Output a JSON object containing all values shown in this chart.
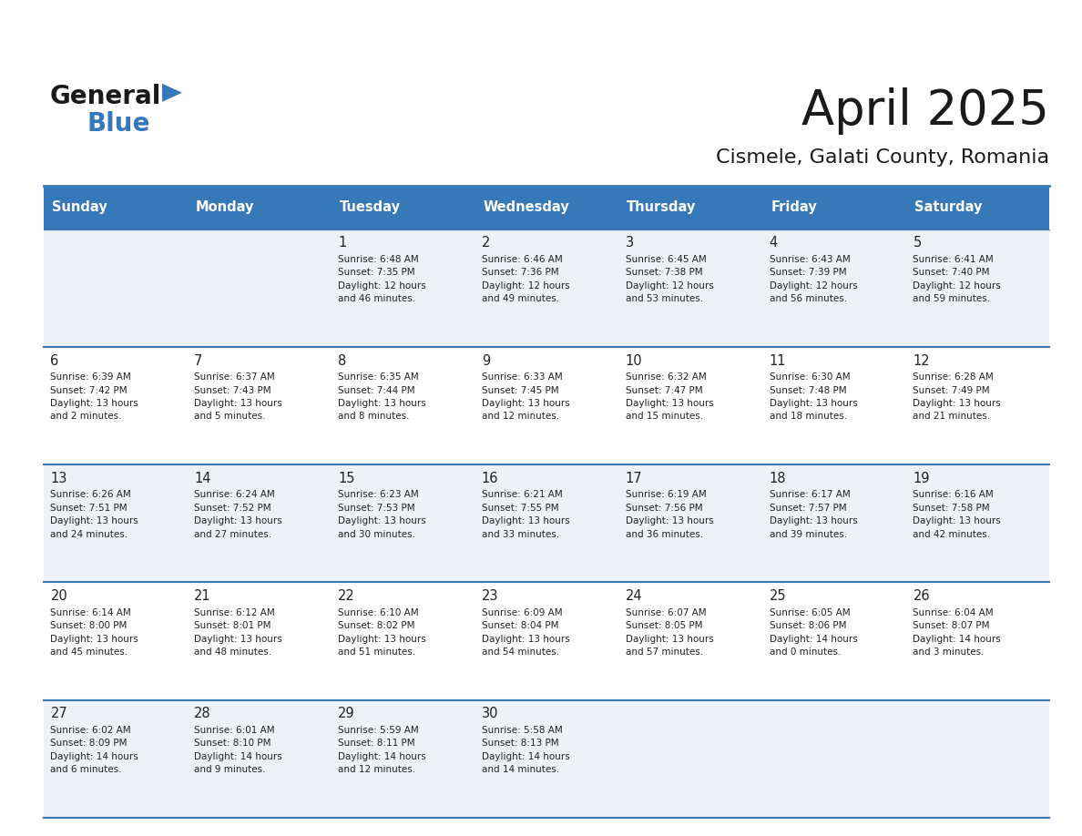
{
  "title": "April 2025",
  "subtitle": "Cismele, Galati County, Romania",
  "header_bg": "#3778b8",
  "header_text_color": "#ffffff",
  "days_of_week": [
    "Sunday",
    "Monday",
    "Tuesday",
    "Wednesday",
    "Thursday",
    "Friday",
    "Saturday"
  ],
  "row_bg_light": "#eef1f5",
  "row_bg_white": "#ffffff",
  "cell_border_color": "#3778b8",
  "day_number_color": "#222222",
  "info_text_color": "#222222",
  "title_color": "#1a1a1a",
  "subtitle_color": "#1a1a1a",
  "logo_text_color_general": "#1a1a1a",
  "logo_text_color_blue": "#3778b8",
  "logo_triangle_color": "#3778b8",
  "calendar_data": [
    [
      {
        "day": "",
        "info": ""
      },
      {
        "day": "",
        "info": ""
      },
      {
        "day": "1",
        "info": "Sunrise: 6:48 AM\nSunset: 7:35 PM\nDaylight: 12 hours\nand 46 minutes."
      },
      {
        "day": "2",
        "info": "Sunrise: 6:46 AM\nSunset: 7:36 PM\nDaylight: 12 hours\nand 49 minutes."
      },
      {
        "day": "3",
        "info": "Sunrise: 6:45 AM\nSunset: 7:38 PM\nDaylight: 12 hours\nand 53 minutes."
      },
      {
        "day": "4",
        "info": "Sunrise: 6:43 AM\nSunset: 7:39 PM\nDaylight: 12 hours\nand 56 minutes."
      },
      {
        "day": "5",
        "info": "Sunrise: 6:41 AM\nSunset: 7:40 PM\nDaylight: 12 hours\nand 59 minutes."
      }
    ],
    [
      {
        "day": "6",
        "info": "Sunrise: 6:39 AM\nSunset: 7:42 PM\nDaylight: 13 hours\nand 2 minutes."
      },
      {
        "day": "7",
        "info": "Sunrise: 6:37 AM\nSunset: 7:43 PM\nDaylight: 13 hours\nand 5 minutes."
      },
      {
        "day": "8",
        "info": "Sunrise: 6:35 AM\nSunset: 7:44 PM\nDaylight: 13 hours\nand 8 minutes."
      },
      {
        "day": "9",
        "info": "Sunrise: 6:33 AM\nSunset: 7:45 PM\nDaylight: 13 hours\nand 12 minutes."
      },
      {
        "day": "10",
        "info": "Sunrise: 6:32 AM\nSunset: 7:47 PM\nDaylight: 13 hours\nand 15 minutes."
      },
      {
        "day": "11",
        "info": "Sunrise: 6:30 AM\nSunset: 7:48 PM\nDaylight: 13 hours\nand 18 minutes."
      },
      {
        "day": "12",
        "info": "Sunrise: 6:28 AM\nSunset: 7:49 PM\nDaylight: 13 hours\nand 21 minutes."
      }
    ],
    [
      {
        "day": "13",
        "info": "Sunrise: 6:26 AM\nSunset: 7:51 PM\nDaylight: 13 hours\nand 24 minutes."
      },
      {
        "day": "14",
        "info": "Sunrise: 6:24 AM\nSunset: 7:52 PM\nDaylight: 13 hours\nand 27 minutes."
      },
      {
        "day": "15",
        "info": "Sunrise: 6:23 AM\nSunset: 7:53 PM\nDaylight: 13 hours\nand 30 minutes."
      },
      {
        "day": "16",
        "info": "Sunrise: 6:21 AM\nSunset: 7:55 PM\nDaylight: 13 hours\nand 33 minutes."
      },
      {
        "day": "17",
        "info": "Sunrise: 6:19 AM\nSunset: 7:56 PM\nDaylight: 13 hours\nand 36 minutes."
      },
      {
        "day": "18",
        "info": "Sunrise: 6:17 AM\nSunset: 7:57 PM\nDaylight: 13 hours\nand 39 minutes."
      },
      {
        "day": "19",
        "info": "Sunrise: 6:16 AM\nSunset: 7:58 PM\nDaylight: 13 hours\nand 42 minutes."
      }
    ],
    [
      {
        "day": "20",
        "info": "Sunrise: 6:14 AM\nSunset: 8:00 PM\nDaylight: 13 hours\nand 45 minutes."
      },
      {
        "day": "21",
        "info": "Sunrise: 6:12 AM\nSunset: 8:01 PM\nDaylight: 13 hours\nand 48 minutes."
      },
      {
        "day": "22",
        "info": "Sunrise: 6:10 AM\nSunset: 8:02 PM\nDaylight: 13 hours\nand 51 minutes."
      },
      {
        "day": "23",
        "info": "Sunrise: 6:09 AM\nSunset: 8:04 PM\nDaylight: 13 hours\nand 54 minutes."
      },
      {
        "day": "24",
        "info": "Sunrise: 6:07 AM\nSunset: 8:05 PM\nDaylight: 13 hours\nand 57 minutes."
      },
      {
        "day": "25",
        "info": "Sunrise: 6:05 AM\nSunset: 8:06 PM\nDaylight: 14 hours\nand 0 minutes."
      },
      {
        "day": "26",
        "info": "Sunrise: 6:04 AM\nSunset: 8:07 PM\nDaylight: 14 hours\nand 3 minutes."
      }
    ],
    [
      {
        "day": "27",
        "info": "Sunrise: 6:02 AM\nSunset: 8:09 PM\nDaylight: 14 hours\nand 6 minutes."
      },
      {
        "day": "28",
        "info": "Sunrise: 6:01 AM\nSunset: 8:10 PM\nDaylight: 14 hours\nand 9 minutes."
      },
      {
        "day": "29",
        "info": "Sunrise: 5:59 AM\nSunset: 8:11 PM\nDaylight: 14 hours\nand 12 minutes."
      },
      {
        "day": "30",
        "info": "Sunrise: 5:58 AM\nSunset: 8:13 PM\nDaylight: 14 hours\nand 14 minutes."
      },
      {
        "day": "",
        "info": ""
      },
      {
        "day": "",
        "info": ""
      },
      {
        "day": "",
        "info": ""
      }
    ]
  ]
}
